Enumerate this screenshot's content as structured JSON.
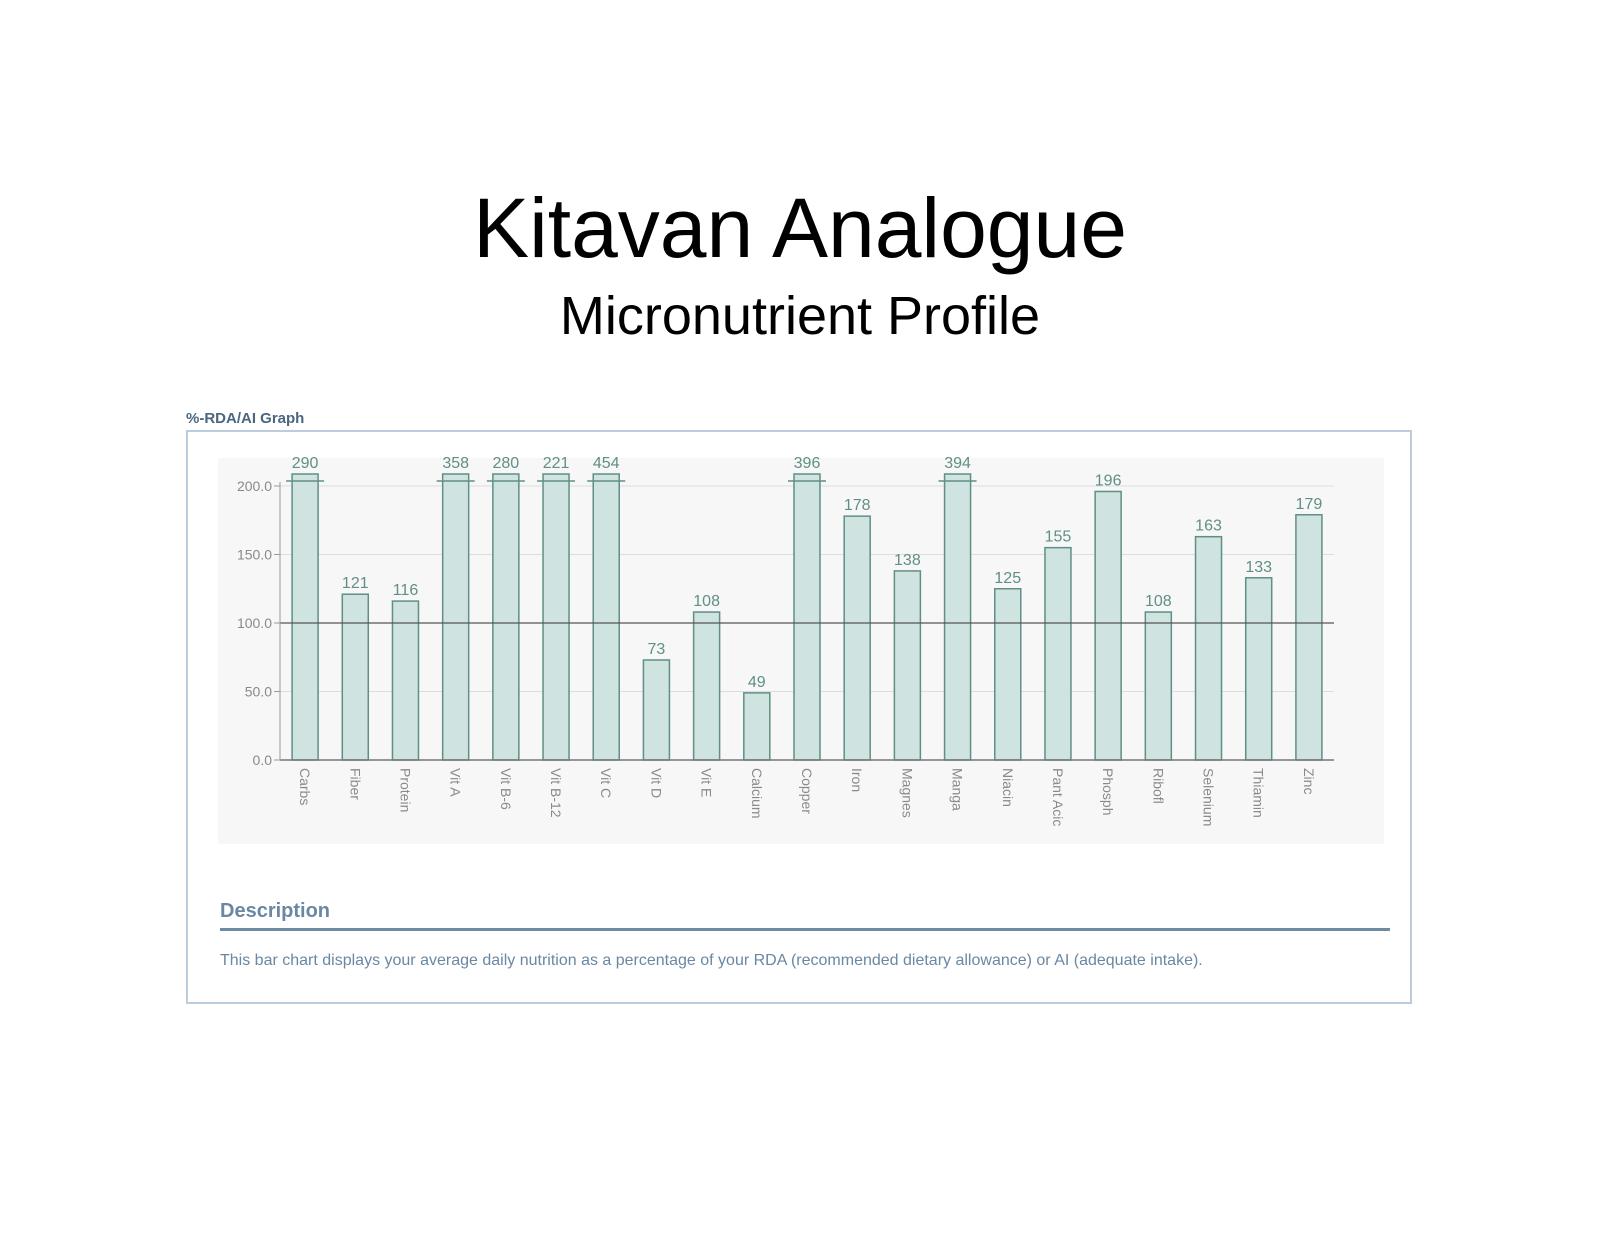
{
  "slide": {
    "title": "Kitavan Analogue",
    "subtitle": "Micronutrient Profile"
  },
  "panel": {
    "label": "%-RDA/AI Graph",
    "description_heading": "Description",
    "description_text": "This bar chart displays your average daily nutrition as a percentage of your RDA (recommended dietary allowance) or AI (adequate intake)."
  },
  "colors": {
    "bar_fill": "#cfe4e0",
    "bar_stroke": "#5f8f85",
    "label_text": "#5f8f85",
    "axis_text": "#8a8a8a",
    "grid": "#dddddd",
    "reference_line": "#555555",
    "plot_bg": "#f7f7f7",
    "panel_border": "#bcccdc",
    "accent_blue": "#6a87a3"
  },
  "chart_data": {
    "type": "bar",
    "categories": [
      "Carbs",
      "Fiber",
      "Protein",
      "Vit A",
      "Vit B-6",
      "Vit B-12",
      "Vit C",
      "Vit D",
      "Vit E",
      "Calcium",
      "Copper",
      "Iron",
      "Magnes",
      "Manga",
      "Niacin",
      "Pant Acic",
      "Phosph",
      "Ribofl",
      "Selenium",
      "Thiamin",
      "Zinc"
    ],
    "values": [
      290,
      121,
      116,
      358,
      280,
      221,
      454,
      73,
      108,
      49,
      396,
      178,
      138,
      394,
      125,
      155,
      196,
      108,
      163,
      133,
      179
    ],
    "value_labels": [
      "290",
      "121",
      "116",
      "358",
      "280",
      "221",
      "454",
      "73",
      "108",
      "49",
      "396",
      "178",
      "138",
      "394",
      "125",
      "155",
      "196",
      "108",
      "163",
      "133",
      "179"
    ],
    "yticks": [
      "0.0",
      "50.0",
      "100.0",
      "150.0",
      "200.0"
    ],
    "ylim": [
      0,
      200
    ],
    "reference_value": 100,
    "bars_clipped_above_max": true,
    "grid": true,
    "legend": "none"
  }
}
